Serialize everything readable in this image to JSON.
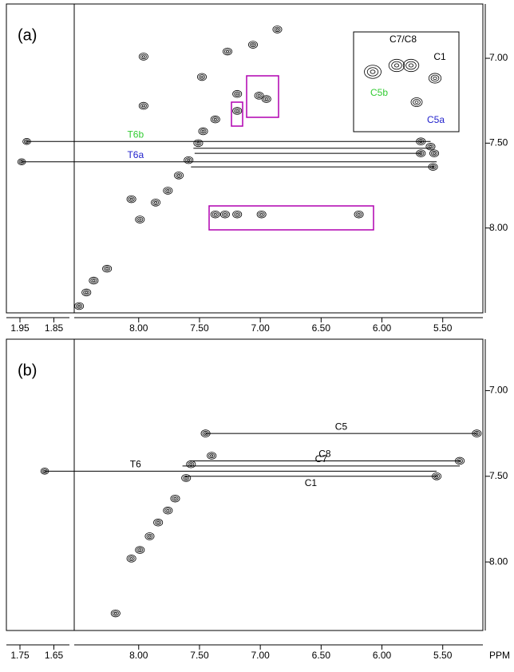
{
  "chart_data": [
    {
      "type": "contour",
      "panel_label": "(a)",
      "xlim": [
        8.53,
        5.17
      ],
      "xticks": [
        {
          "value": 8,
          "label": "8.00"
        },
        {
          "value": 7.5,
          "label": "7.50"
        },
        {
          "value": 7,
          "label": "7.00"
        },
        {
          "value": 6.5,
          "label": "6.50"
        },
        {
          "value": 6,
          "label": "6.00"
        },
        {
          "value": 5.5,
          "label": "5.50"
        }
      ],
      "strip_xlim": [
        1.99,
        1.79
      ],
      "strip_xticks": [
        {
          "value": 1.95,
          "label": "1.95"
        },
        {
          "value": 1.85,
          "label": "1.85"
        }
      ],
      "ylim": [
        6.68,
        8.5
      ],
      "yticks": [
        {
          "value": 7,
          "label": "7.00"
        },
        {
          "value": 7.5,
          "label": "7.50"
        },
        {
          "value": 8,
          "label": "8.00"
        }
      ],
      "peaks": [
        {
          "x": 6.86,
          "y": 6.83
        },
        {
          "x": 7.06,
          "y": 6.92
        },
        {
          "x": 7.27,
          "y": 6.96
        },
        {
          "x": 7.96,
          "y": 6.99
        },
        {
          "x": 7.48,
          "y": 7.11
        },
        {
          "x": 7.96,
          "y": 7.28
        },
        {
          "x": 7.19,
          "y": 7.31
        },
        {
          "x": 7.19,
          "y": 7.21
        },
        {
          "x": 7.01,
          "y": 7.22
        },
        {
          "x": 6.95,
          "y": 7.24
        },
        {
          "x": 7.37,
          "y": 7.36
        },
        {
          "x": 7.47,
          "y": 7.43
        },
        {
          "x": 7.51,
          "y": 7.5
        },
        {
          "x": 7.59,
          "y": 7.6
        },
        {
          "x": 7.67,
          "y": 7.69
        },
        {
          "x": 7.76,
          "y": 7.78
        },
        {
          "x": 7.86,
          "y": 7.85
        },
        {
          "x": 7.99,
          "y": 7.95
        },
        {
          "x": 8.06,
          "y": 7.83
        },
        {
          "x": 8.26,
          "y": 8.24
        },
        {
          "x": 8.37,
          "y": 8.31
        },
        {
          "x": 8.43,
          "y": 8.38
        },
        {
          "x": 8.49,
          "y": 8.46
        },
        {
          "x": 7.37,
          "y": 7.92
        },
        {
          "x": 7.29,
          "y": 7.92
        },
        {
          "x": 7.19,
          "y": 7.92
        },
        {
          "x": 6.99,
          "y": 7.92
        },
        {
          "x": 6.19,
          "y": 7.92
        },
        {
          "x": 5.68,
          "y": 7.49
        },
        {
          "x": 5.6,
          "y": 7.52
        },
        {
          "x": 5.68,
          "y": 7.56
        },
        {
          "x": 5.57,
          "y": 7.56
        },
        {
          "x": 5.58,
          "y": 7.64
        }
      ],
      "strip_peaks": [
        {
          "x": 1.93,
          "y": 7.49
        },
        {
          "x": 1.945,
          "y": 7.61
        }
      ],
      "links": [
        {
          "label": "T6b",
          "label_color": "#33cc33",
          "y": 7.49,
          "from_strip": 1.93,
          "to": 5.6
        },
        {
          "label": "T6a",
          "label_color": "#2222cc",
          "y": 7.61,
          "from_strip": 1.945,
          "to": 5.55
        },
        {
          "y": 7.53,
          "from": 7.55,
          "to": 5.6
        },
        {
          "y": 7.56,
          "from": 7.54,
          "to": 5.68
        },
        {
          "y": 7.64,
          "from": 7.57,
          "to": 5.57
        }
      ],
      "inset_labels": [
        {
          "text": "C7/C8",
          "color": "#000000"
        },
        {
          "text": "C1",
          "color": "#000000"
        },
        {
          "text": "C5b",
          "color": "#33cc33"
        },
        {
          "text": "C5a",
          "color": "#2222cc"
        }
      ]
    },
    {
      "type": "contour",
      "panel_label": "(b)",
      "x_label": "PPM",
      "xlim": [
        8.53,
        5.17
      ],
      "xticks": [
        {
          "value": 8,
          "label": "8.00"
        },
        {
          "value": 7.5,
          "label": "7.50"
        },
        {
          "value": 7,
          "label": "7.00"
        },
        {
          "value": 6.5,
          "label": "6.50"
        },
        {
          "value": 6,
          "label": "6.00"
        },
        {
          "value": 5.5,
          "label": "5.50"
        }
      ],
      "strip_xlim": [
        1.79,
        1.59
      ],
      "strip_xticks": [
        {
          "value": 1.75,
          "label": "1.75"
        },
        {
          "value": 1.65,
          "label": "1.65"
        }
      ],
      "ylim": [
        6.7,
        8.4
      ],
      "yticks": [
        {
          "value": 7,
          "label": "7.00"
        },
        {
          "value": 7.5,
          "label": "7.50"
        },
        {
          "value": 8,
          "label": "8.00"
        }
      ],
      "peaks": [
        {
          "x": 7.45,
          "y": 7.25
        },
        {
          "x": 7.4,
          "y": 7.38
        },
        {
          "x": 7.57,
          "y": 7.43
        },
        {
          "x": 7.61,
          "y": 7.51
        },
        {
          "x": 7.7,
          "y": 7.63
        },
        {
          "x": 7.76,
          "y": 7.7
        },
        {
          "x": 7.84,
          "y": 7.77
        },
        {
          "x": 7.91,
          "y": 7.85
        },
        {
          "x": 7.99,
          "y": 7.93
        },
        {
          "x": 8.06,
          "y": 7.98
        },
        {
          "x": 8.19,
          "y": 8.3
        },
        {
          "x": 5.22,
          "y": 7.25
        },
        {
          "x": 5.36,
          "y": 7.41
        },
        {
          "x": 5.55,
          "y": 7.5
        }
      ],
      "strip_peaks": [
        {
          "x": 1.677,
          "y": 7.47
        }
      ],
      "links": [
        {
          "label": "C5",
          "y": 7.25,
          "from": 7.45,
          "to": 5.22
        },
        {
          "label": "C8",
          "y": 7.41,
          "from": 7.58,
          "to": 5.36
        },
        {
          "label": "C7",
          "y": 7.44,
          "from": 7.64,
          "to": 5.36
        },
        {
          "label": "T6",
          "y": 7.47,
          "from_strip": 1.677,
          "to": 5.55
        },
        {
          "label": "C1",
          "y": 7.5,
          "from": 7.62,
          "to": 5.55
        }
      ]
    }
  ]
}
